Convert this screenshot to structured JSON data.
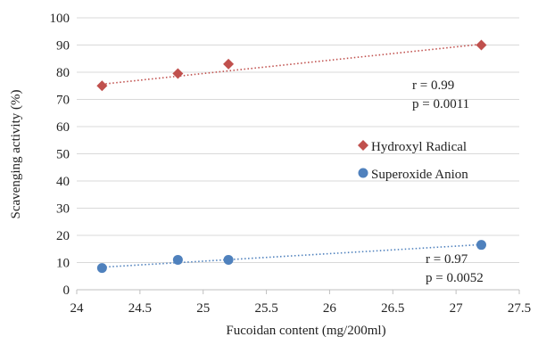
{
  "chart_data": {
    "type": "scatter",
    "xlabel": "Fucoidan content (mg/200ml)",
    "ylabel": "Scavenging activity (%)",
    "xlim": [
      24,
      27.5
    ],
    "ylim": [
      0,
      100
    ],
    "x_ticks": [
      "24",
      "24.5",
      "25",
      "25.5",
      "26",
      "26.5",
      "27",
      "27.5"
    ],
    "y_ticks": [
      "0",
      "10",
      "20",
      "30",
      "40",
      "50",
      "60",
      "70",
      "80",
      "90",
      "100"
    ],
    "grid": "horizontal",
    "legend_position": "right-center",
    "series": [
      {
        "name": "Hydroxyl Radical",
        "marker": "diamond",
        "color": "#C0504D",
        "points": [
          {
            "x": 24.2,
            "y": 75
          },
          {
            "x": 24.8,
            "y": 79.5
          },
          {
            "x": 25.2,
            "y": 83
          },
          {
            "x": 27.2,
            "y": 90
          }
        ],
        "trendline": {
          "x": [
            24.2,
            27.2
          ],
          "y": [
            75.6,
            90.3
          ]
        },
        "annotation": [
          "r = 0.99",
          "p = 0.0011"
        ]
      },
      {
        "name": "Superoxide Anion",
        "marker": "circle",
        "color": "#4F81BD",
        "points": [
          {
            "x": 24.2,
            "y": 8
          },
          {
            "x": 24.8,
            "y": 11
          },
          {
            "x": 25.2,
            "y": 11
          },
          {
            "x": 27.2,
            "y": 16.5
          }
        ],
        "trendline": {
          "x": [
            24.2,
            27.2
          ],
          "y": [
            8.3,
            16.6
          ]
        },
        "annotation": [
          "r = 0.97",
          "p = 0.0052"
        ]
      }
    ]
  }
}
